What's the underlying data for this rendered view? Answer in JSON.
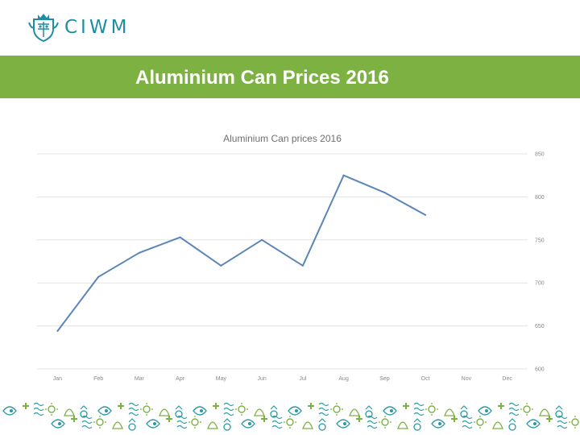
{
  "logo": {
    "text": "CIWM",
    "icon": "crest-icon"
  },
  "banner": {
    "title": "Aluminium Can Prices 2016"
  },
  "colors": {
    "banner": "#7db243",
    "brand": "#1f8ea3",
    "line": "#5b86b7",
    "pattern": "#2b9aa6"
  },
  "footer": {
    "icon": "pattern-icon"
  },
  "chart_data": {
    "type": "line",
    "title": "Aluminium Can prices 2016",
    "categories": [
      "Jan",
      "Feb",
      "Mar",
      "Apr",
      "May",
      "Jun",
      "Jul",
      "Aug",
      "Sep",
      "Oct",
      "Nov",
      "Dec"
    ],
    "series": [
      {
        "values": [
          644,
          707,
          735,
          753,
          720,
          750,
          720,
          825,
          805,
          779,
          null,
          null
        ]
      }
    ],
    "ylim": [
      600,
      850
    ],
    "yticks": [
      600,
      650,
      700,
      750,
      800,
      850
    ],
    "y_axis_position": "right",
    "grid": true,
    "legend": "none",
    "xlabel": "",
    "ylabel": ""
  }
}
